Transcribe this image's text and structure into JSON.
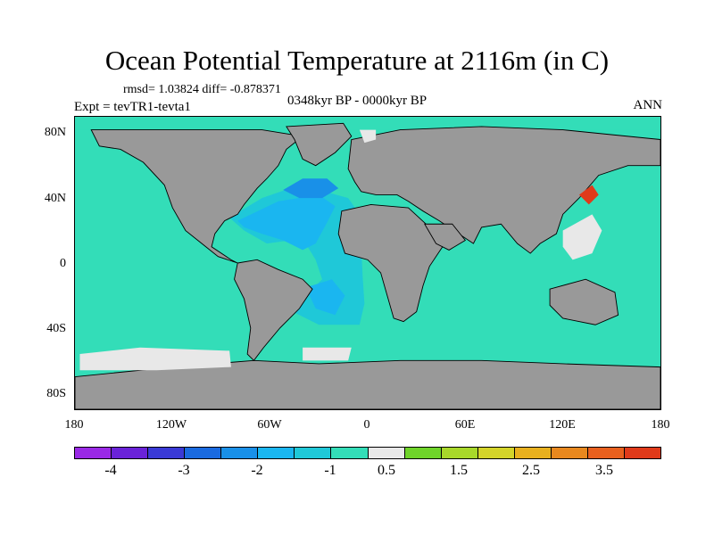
{
  "title": "Ocean Potential Temperature at 2116m (in C)",
  "stats": "rmsd= 1.03824 diff= -0.878371",
  "experiment": "Expt = tevTR1-tevta1",
  "period": "0348kyr BP - 0000kyr BP",
  "season": "ANN",
  "map": {
    "projection": "cylindrical equidistant",
    "lon_range": [
      -180,
      180
    ],
    "lat_range": [
      -90,
      90
    ],
    "land_color": "#999999",
    "ocean_default_color": "#33DDB8",
    "lat_tick_labels": [
      "80N",
      "40N",
      "0",
      "40S",
      "80S"
    ],
    "lon_tick_labels": [
      "180",
      "120W",
      "60W",
      "0",
      "60E",
      "120E",
      "180"
    ]
  },
  "colorbar": {
    "colors": [
      "#9A29E6",
      "#6A22D8",
      "#3A3AD6",
      "#1A6AE0",
      "#1990E8",
      "#1AB6F0",
      "#1FC8D8",
      "#33DDB8",
      "#E8E8E8",
      "#6FD42A",
      "#A8D82A",
      "#D4D42A",
      "#E8B01E",
      "#E8881E",
      "#E8601E",
      "#E03A1A"
    ],
    "labels": [
      "-4",
      "-3",
      "-2",
      "-1",
      "0.5",
      "1.5",
      "2.5",
      "3.5"
    ]
  }
}
